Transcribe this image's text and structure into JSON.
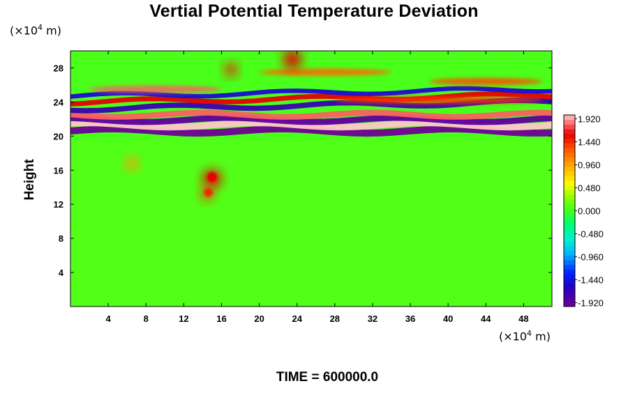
{
  "chart_data": {
    "type": "heatmap",
    "title": "Vertial Potential Temperature Deviation",
    "ylabel": "Height",
    "y_unit_prefix": "(×10",
    "y_unit_exp": "4",
    "y_unit_suffix": " m)",
    "x_unit_prefix": "(×10",
    "x_unit_exp": "4",
    "x_unit_suffix": " m)",
    "footer": "TIME = 600000.0",
    "xlim": [
      0,
      51
    ],
    "ylim": [
      0,
      30
    ],
    "x_ticks": [
      4,
      8,
      12,
      16,
      20,
      24,
      28,
      32,
      36,
      40,
      44,
      48
    ],
    "x_tick_labels": [
      "4",
      "8",
      "12",
      "16",
      "20",
      "24",
      "28",
      "32",
      "36",
      "40",
      "44",
      "48"
    ],
    "y_ticks": [
      4,
      8,
      12,
      16,
      20,
      24,
      28
    ],
    "y_tick_labels": [
      "4",
      "8",
      "12",
      "16",
      "20",
      "24",
      "28"
    ],
    "colorbar": {
      "min": -2.0,
      "max": 2.0,
      "label_values": [
        1.92,
        1.44,
        0.96,
        0.48,
        0.0,
        -0.48,
        -0.96,
        -1.44,
        -1.92
      ],
      "labels": [
        "1.920",
        "1.440",
        "0.960",
        "0.480",
        "0.000",
        "-0.480",
        "-0.960",
        "-1.440",
        "-1.920"
      ]
    },
    "features": {
      "bands": [
        {
          "y": 20.6,
          "value": -2.0
        },
        {
          "y": 21.3,
          "value": 2.0
        },
        {
          "y": 21.9,
          "value": -1.9
        },
        {
          "y": 22.5,
          "value": 1.8
        },
        {
          "y": 23.2,
          "value": -1.7
        },
        {
          "y": 24.0,
          "value": 1.6
        },
        {
          "y": 24.7,
          "value": -1.5
        }
      ],
      "blobs": [
        {
          "x": 15.0,
          "y": 15.0,
          "value": 1.6
        },
        {
          "x": 14.5,
          "y": 13.2,
          "value": 1.4
        },
        {
          "x": 17.0,
          "y": 27.8,
          "value": 1.5
        },
        {
          "x": 23.5,
          "y": 29.0,
          "value": 1.6
        },
        {
          "x": 6.5,
          "y": 16.8,
          "value": 1.0
        }
      ]
    }
  }
}
